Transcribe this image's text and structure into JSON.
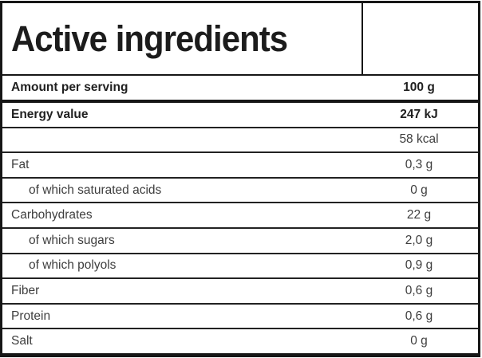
{
  "title": "Active ingredients",
  "columns": {
    "label_header": "Amount per serving",
    "value_header": "100 g"
  },
  "rows": [
    {
      "label": "Energy value",
      "value": "247 kJ"
    },
    {
      "label": "",
      "value": "58 kcal"
    },
    {
      "label": "Fat",
      "value": "0,3 g"
    },
    {
      "label": "of which saturated acids",
      "value": "0 g"
    },
    {
      "label": "Carbohydrates",
      "value": "22 g"
    },
    {
      "label": "of which sugars",
      "value": "2,0 g"
    },
    {
      "label": "of which polyols",
      "value": "0,9 g"
    },
    {
      "label": "Fiber",
      "value": "0,6 g"
    },
    {
      "label": "Protein",
      "value": "0,6 g"
    },
    {
      "label": "Salt",
      "value": "0 g"
    }
  ],
  "colors": {
    "border": "#161616",
    "text_heading": "#1c1c1c",
    "text_bold_rows": "#202020",
    "text_body": "#3e3e3e",
    "background": "#ffffff"
  },
  "chart_data": {
    "type": "table",
    "title": "Active ingredients",
    "column_headers": [
      "Amount per serving",
      "100 g"
    ],
    "rows": [
      [
        "Energy value",
        "247 kJ"
      ],
      [
        "",
        "58 kcal"
      ],
      [
        "Fat",
        "0,3 g"
      ],
      [
        "of which saturated acids",
        "0 g"
      ],
      [
        "Carbohydrates",
        "22 g"
      ],
      [
        "of which sugars",
        "2,0 g"
      ],
      [
        "of which polyols",
        "0,9 g"
      ],
      [
        "Fiber",
        "0,6 g"
      ],
      [
        "Protein",
        "0,6 g"
      ],
      [
        "Salt",
        "0 g"
      ]
    ]
  }
}
